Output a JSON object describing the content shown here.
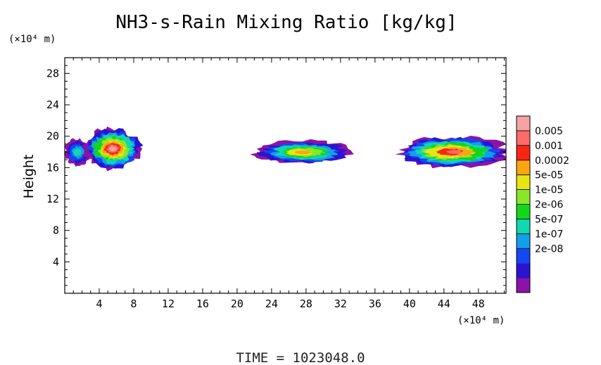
{
  "chart_data": {
    "type": "heatmap",
    "title": "NH3-s-Rain Mixing Ratio [kg/kg]",
    "ylabel": "Height",
    "y_unit": "(×10⁴ m)",
    "x_unit": "(×10⁴ m)",
    "x_ticks": [
      "4",
      "8",
      "12",
      "16",
      "20",
      "24",
      "28",
      "32",
      "36",
      "40",
      "44",
      "48"
    ],
    "y_ticks": [
      "4",
      "8",
      "12",
      "16",
      "20",
      "24",
      "28"
    ],
    "xlim": [
      0,
      51.2
    ],
    "ylim": [
      0,
      30
    ],
    "grid": false,
    "colorbar": {
      "labels": [
        "0.005",
        "0.001",
        "0.0002",
        "5e-05",
        "1e-05",
        "2e-06",
        "5e-07",
        "1e-07",
        "2e-08"
      ],
      "colors": [
        "#8b13a8",
        "#2a14d0",
        "#1448f0",
        "#139fe8",
        "#10d8b0",
        "#13d61a",
        "#8ae62a",
        "#e8e515",
        "#fba414",
        "#f52712",
        "#ff6a6a",
        "#f5a3a3"
      ]
    },
    "clouds": [
      {
        "x_range": [
          0,
          3.0
        ],
        "y_range": [
          16.3,
          19.6
        ],
        "peak_level": 4
      },
      {
        "x_range": [
          2.3,
          8.7
        ],
        "y_range": [
          15.9,
          20.9
        ],
        "peak_level": 11
      },
      {
        "x_range": [
          22.1,
          33.0
        ],
        "y_range": [
          16.5,
          19.4
        ],
        "peak_level": 8
      },
      {
        "x_range": [
          38.6,
          51.2
        ],
        "y_range": [
          16.1,
          19.9
        ],
        "peak_level": 10
      }
    ],
    "footer": "TIME = 1023048.0"
  }
}
